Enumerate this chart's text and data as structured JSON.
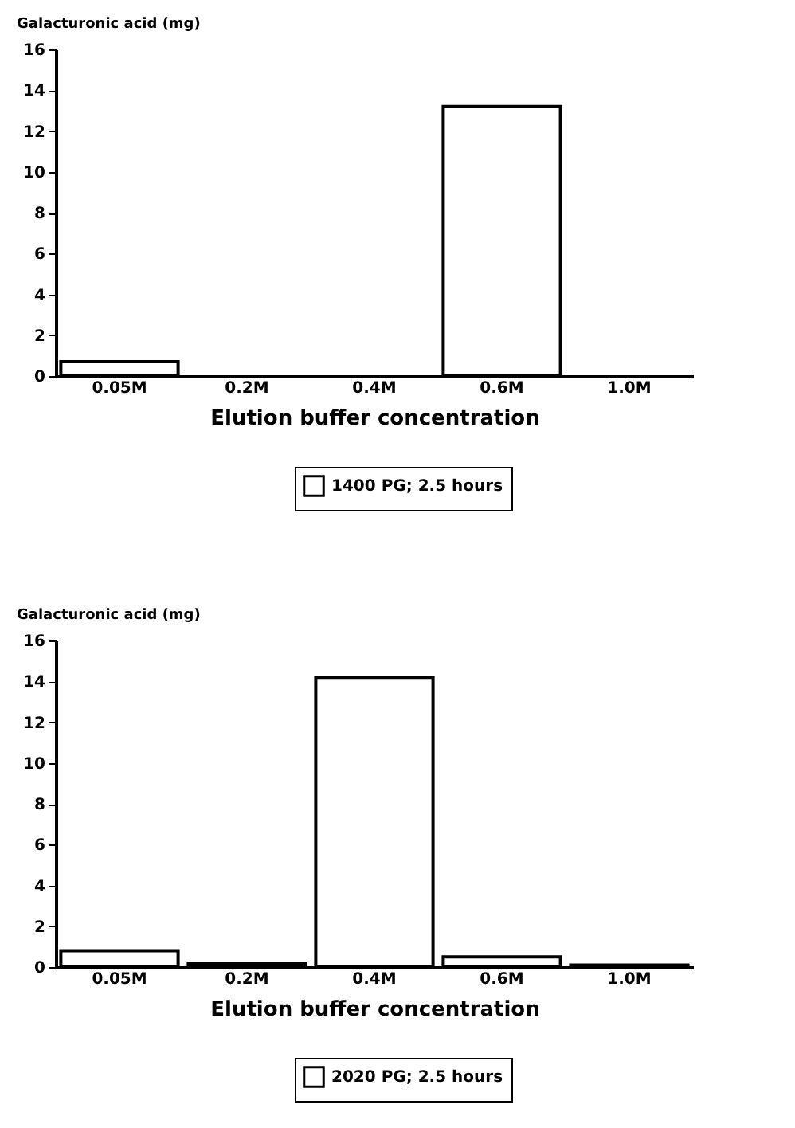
{
  "chart_data": [
    {
      "type": "bar",
      "ylabel": "Galacturonic acid (mg)",
      "xlabel": "Elution buffer concentration",
      "categories": [
        "0.05M",
        "0.2M",
        "0.4M",
        "0.6M",
        "1.0M"
      ],
      "series": [
        {
          "name": "1400 PG; 2.5 hours",
          "color": "#ffffff",
          "values": [
            0.7,
            0,
            0,
            13.2,
            0
          ]
        }
      ],
      "ylim": [
        0,
        16
      ],
      "yticks": [
        0,
        2,
        4,
        6,
        8,
        10,
        12,
        14,
        16
      ],
      "grid": false,
      "legend": "bottom"
    },
    {
      "type": "bar",
      "ylabel": "Galacturonic acid (mg)",
      "xlabel": "Elution buffer concentration",
      "categories": [
        "0.05M",
        "0.2M",
        "0.4M",
        "0.6M",
        "1.0M"
      ],
      "series": [
        {
          "name": "2020 PG; 2.5 hours",
          "color": "#ffffff",
          "values": [
            0.8,
            0.2,
            14.2,
            0.5,
            0.1
          ]
        }
      ],
      "ylim": [
        0,
        16
      ],
      "yticks": [
        0,
        2,
        4,
        6,
        8,
        10,
        12,
        14,
        16
      ],
      "grid": false,
      "legend": "bottom"
    }
  ]
}
